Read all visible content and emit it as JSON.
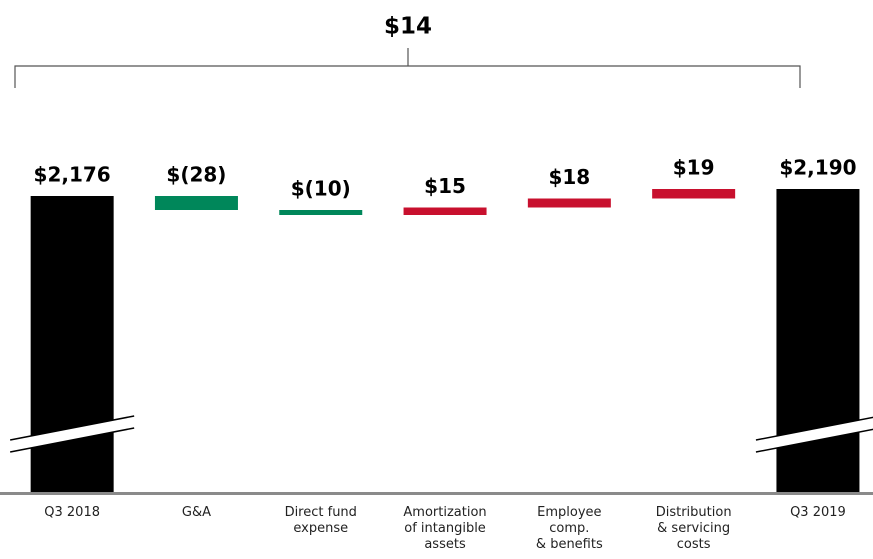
{
  "chart_data": {
    "type": "waterfall",
    "annotation": "$14",
    "categories": [
      "Q3 2018",
      "G&A",
      "Direct fund\nexpense",
      "Amortization\nof intangible\nassets",
      "Employee\ncomp.\n& benefits",
      "Distribution\n& servicing\ncosts",
      "Q3 2019"
    ],
    "values": [
      2176,
      -28,
      -10,
      15,
      18,
      19,
      2190
    ],
    "value_labels": [
      "$2,176",
      "$(28)",
      "$(10)",
      "$15",
      "$18",
      "$19",
      "$2,190"
    ],
    "kinds": [
      "total",
      "delta",
      "delta",
      "delta",
      "delta",
      "delta",
      "total"
    ],
    "colors": {
      "total": "#000000",
      "decrease": "#00875a",
      "increase": "#c8102e"
    },
    "ylim": [
      1584,
      2288
    ]
  }
}
